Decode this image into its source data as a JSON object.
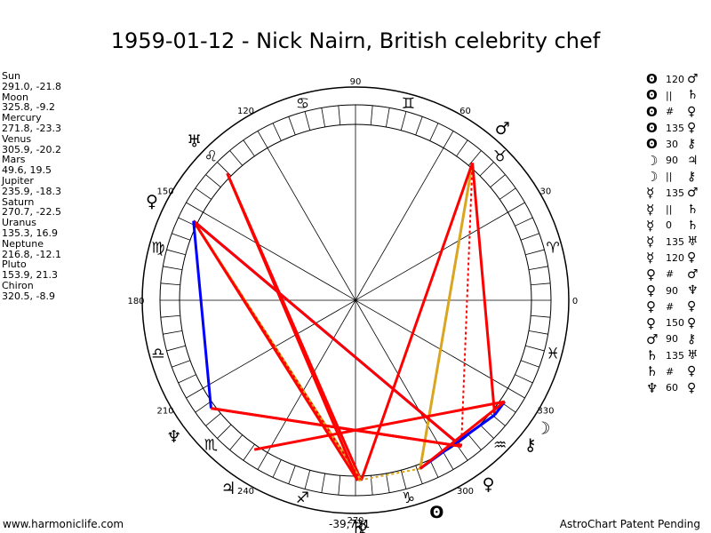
{
  "title": "1959-01-12 - Nick Nairn, British celebrity chef",
  "planets": [
    {
      "name": "Sun",
      "coords": "291.0, -21.8",
      "glyph": "ʘ",
      "lon": 291.0
    },
    {
      "name": "Moon",
      "coords": "325.8, -9.2",
      "glyph": "☽",
      "lon": 325.8
    },
    {
      "name": "Mercury",
      "coords": "271.8, -23.3",
      "glyph": "☿",
      "lon": 271.8
    },
    {
      "name": "Venus",
      "coords": "305.9, -20.2",
      "glyph": "♀",
      "lon": 305.9
    },
    {
      "name": "Mars",
      "coords": "49.6, 19.5",
      "glyph": "♂",
      "lon": 49.6
    },
    {
      "name": "Jupiter",
      "coords": "235.9, -18.3",
      "glyph": "♃",
      "lon": 235.9
    },
    {
      "name": "Saturn",
      "coords": "270.7, -22.5",
      "glyph": "♄",
      "lon": 270.7
    },
    {
      "name": "Uranus",
      "coords": "135.3, 16.9",
      "glyph": "♅",
      "lon": 135.3
    },
    {
      "name": "Neptune",
      "coords": "216.8, -12.1",
      "glyph": "♆",
      "lon": 216.8
    },
    {
      "name": "Pluto",
      "coords": "153.9, 21.3",
      "glyph": "♀",
      "lon": 153.9
    },
    {
      "name": "Chiron",
      "coords": "320.5, -8.9",
      "glyph": "⚷",
      "lon": 320.5
    }
  ],
  "aspects": [
    {
      "p1": "ʘ",
      "aspect": "120",
      "p2": "♂"
    },
    {
      "p1": "ʘ",
      "aspect": "||",
      "p2": "♄"
    },
    {
      "p1": "ʘ",
      "aspect": "#",
      "p2": "♀"
    },
    {
      "p1": "ʘ",
      "aspect": "135",
      "p2": "♀"
    },
    {
      "p1": "ʘ",
      "aspect": "30",
      "p2": "⚷"
    },
    {
      "p1": "☽",
      "aspect": "90",
      "p2": "♃"
    },
    {
      "p1": "☽",
      "aspect": "||",
      "p2": "⚷"
    },
    {
      "p1": "☿",
      "aspect": "135",
      "p2": "♂"
    },
    {
      "p1": "☿",
      "aspect": "||",
      "p2": "♄"
    },
    {
      "p1": "☿",
      "aspect": "0",
      "p2": "♄"
    },
    {
      "p1": "☿",
      "aspect": "135",
      "p2": "♅"
    },
    {
      "p1": "☿",
      "aspect": "120",
      "p2": "♀"
    },
    {
      "p1": "♀",
      "aspect": "#",
      "p2": "♂"
    },
    {
      "p1": "♀",
      "aspect": "90",
      "p2": "♆"
    },
    {
      "p1": "♀",
      "aspect": "#",
      "p2": "♀"
    },
    {
      "p1": "♀",
      "aspect": "150",
      "p2": "♀"
    },
    {
      "p1": "♂",
      "aspect": "90",
      "p2": "⚷"
    },
    {
      "p1": "♄",
      "aspect": "135",
      "p2": "♅"
    },
    {
      "p1": "♄",
      "aspect": "#",
      "p2": "♀"
    },
    {
      "p1": "♆",
      "aspect": "60",
      "p2": "♀"
    }
  ],
  "degree_labels": [
    "0",
    "30",
    "60",
    "90",
    "120",
    "150",
    "180",
    "210",
    "240",
    "270",
    "300",
    "330"
  ],
  "zodiac_signs": [
    "♈",
    "♉",
    "♊",
    "♋",
    "♌",
    "♍",
    "♎",
    "♏",
    "♐",
    "♑",
    "♒",
    "♓"
  ],
  "aspect_lines": [
    {
      "from": 291.0,
      "to": 49.6,
      "color": "#DAA520",
      "dash": false
    },
    {
      "from": 291.0,
      "to": 270.7,
      "color": "#DAA520",
      "dash": true
    },
    {
      "from": 271.8,
      "to": 49.6,
      "color": "#FF0000",
      "dash": false
    },
    {
      "from": 271.8,
      "to": 135.3,
      "color": "#FF0000",
      "dash": false
    },
    {
      "from": 271.8,
      "to": 153.9,
      "color": "#DAA520",
      "dash": false
    },
    {
      "from": 271.8,
      "to": 153.9,
      "color": "#FF0000",
      "dash": true
    },
    {
      "from": 305.9,
      "to": 49.6,
      "color": "#FF0000",
      "dash": true
    },
    {
      "from": 305.9,
      "to": 216.8,
      "color": "#FF0000",
      "dash": false
    },
    {
      "from": 305.9,
      "to": 153.9,
      "color": "#0000FF",
      "dash": false
    },
    {
      "from": 305.9,
      "to": 153.9,
      "color": "#FF0000",
      "dash": false
    },
    {
      "from": 49.6,
      "to": 320.5,
      "color": "#FF0000",
      "dash": false
    },
    {
      "from": 325.8,
      "to": 235.9,
      "color": "#FF0000",
      "dash": false
    },
    {
      "from": 270.7,
      "to": 135.3,
      "color": "#FF0000",
      "dash": false
    },
    {
      "from": 270.7,
      "to": 153.9,
      "color": "#FF0000",
      "dash": false
    },
    {
      "from": 216.8,
      "to": 153.9,
      "color": "#0000FF",
      "dash": false
    },
    {
      "from": 291.0,
      "to": 320.5,
      "color": "#0000FF",
      "dash": false
    },
    {
      "from": 325.8,
      "to": 320.5,
      "color": "#0000FF",
      "dash": false
    },
    {
      "from": 271.8,
      "to": 270.7,
      "color": "#DAA520",
      "dash": true
    },
    {
      "from": 305.9,
      "to": 216.8,
      "color": "#FF0000",
      "dash": false
    },
    {
      "from": 291.0,
      "to": 325.8,
      "color": "#FF0000",
      "dash": false
    }
  ],
  "footer": {
    "website": "www.harmoniclife.com",
    "coords": "-39,731",
    "patent": "AstroChart Patent Pending"
  }
}
